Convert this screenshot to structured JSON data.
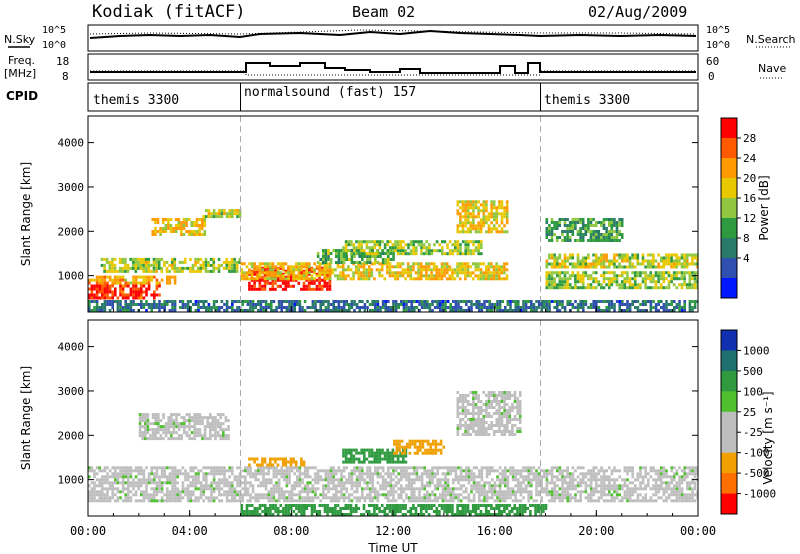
{
  "header": {
    "station": "Kodiak (fitACF)",
    "beam": "Beam 02",
    "date": "02/Aug/2009"
  },
  "strip_noise": {
    "left_label": "N.Sky",
    "left_ticks": [
      "10^5",
      "10^0"
    ],
    "right_label": "N.Search",
    "right_ticks": [
      "10^5",
      "10^0"
    ]
  },
  "strip_freq": {
    "left_label_1": "Freq.",
    "left_label_2": "[MHz]",
    "left_ticks": [
      "18",
      "8"
    ],
    "right_label": "Nave",
    "right_ticks": [
      "60",
      "0"
    ]
  },
  "cpid": {
    "label": "CPID",
    "segments": [
      {
        "name": "themis 3300",
        "start_hour": 0,
        "end_hour": 6
      },
      {
        "name": "normalsound (fast) 157",
        "start_hour": 6,
        "end_hour": 18
      },
      {
        "name": "themis 3300",
        "start_hour": 18,
        "end_hour": 24
      }
    ]
  },
  "power_panel": {
    "ylabel": "Slant Range [km]",
    "yticks": [
      "4000",
      "3000",
      "2000",
      "1000"
    ],
    "colorbar_label": "Power [dB]",
    "colorbar_ticks": [
      "28",
      "24",
      "20",
      "16",
      "12",
      "8",
      "4"
    ],
    "colors": [
      "#ff0000",
      "#ff5a00",
      "#ff9a00",
      "#e8c800",
      "#8fc840",
      "#2e9a40",
      "#2a7a6a",
      "#3050b0",
      "#0018ff"
    ]
  },
  "velocity_panel": {
    "ylabel": "Slant Range [km]",
    "yticks": [
      "4000",
      "3000",
      "2000",
      "1000"
    ],
    "colorbar_label": "Velocity [m s⁻¹]",
    "colorbar_ticks": [
      "1000",
      "500",
      "100",
      "25",
      "-25",
      "-100",
      "-500",
      "-1000"
    ],
    "colors": [
      "#1030b0",
      "#1f6f6f",
      "#2f9a3f",
      "#50c030",
      "#bebebe",
      "#bebebe",
      "#f0a000",
      "#ff7000",
      "#ff0000"
    ]
  },
  "xaxis": {
    "ticks": [
      "00:00",
      "04:00",
      "08:00",
      "12:00",
      "16:00",
      "20:00",
      "00:00"
    ],
    "label": "Time UT"
  },
  "chart_data": [
    {
      "type": "heatmap",
      "title": "Power",
      "xlabel": "Time UT",
      "ylabel": "Slant Range [km]",
      "xlim": [
        0,
        24
      ],
      "ylim": [
        180,
        4600
      ],
      "colorbar": {
        "label": "Power [dB]",
        "ticks": [
          4,
          8,
          12,
          16,
          20,
          24,
          28
        ]
      },
      "regions": [
        {
          "t": [
            0.0,
            2.8
          ],
          "r": [
            500,
            800
          ],
          "level": 27
        },
        {
          "t": [
            0.0,
            3.5
          ],
          "r": [
            800,
            1000
          ],
          "level": 20
        },
        {
          "t": [
            0.5,
            6.0
          ],
          "r": [
            1100,
            1400
          ],
          "level": 15
        },
        {
          "t": [
            2.5,
            4.6
          ],
          "r": [
            1900,
            2300
          ],
          "level": 18
        },
        {
          "t": [
            4.5,
            6.0
          ],
          "r": [
            2300,
            2500
          ],
          "level": 16
        },
        {
          "t": [
            6.3,
            9.5
          ],
          "r": [
            700,
            1200
          ],
          "level": 28
        },
        {
          "t": [
            6.0,
            16.5
          ],
          "r": [
            900,
            1300
          ],
          "level": 18
        },
        {
          "t": [
            9.0,
            12.0
          ],
          "r": [
            1300,
            1600
          ],
          "level": 12
        },
        {
          "t": [
            10.0,
            15.5
          ],
          "r": [
            1500,
            1800
          ],
          "level": 14
        },
        {
          "t": [
            14.5,
            16.5
          ],
          "r": [
            2000,
            2700
          ],
          "level": 18
        },
        {
          "t": [
            18.0,
            24.0
          ],
          "r": [
            1200,
            1500
          ],
          "level": 16
        },
        {
          "t": [
            18.0,
            24.0
          ],
          "r": [
            700,
            1100
          ],
          "level": 14
        },
        {
          "t": [
            18.0,
            21.0
          ],
          "r": [
            1800,
            2300
          ],
          "level": 10
        },
        {
          "t": [
            0.0,
            24.0
          ],
          "r": [
            200,
            450
          ],
          "level": 6
        }
      ]
    },
    {
      "type": "heatmap",
      "title": "Velocity",
      "xlabel": "Time UT",
      "ylabel": "Slant Range [km]",
      "xlim": [
        0,
        24
      ],
      "ylim": [
        180,
        4600
      ],
      "colorbar": {
        "label": "Velocity [m s⁻¹]",
        "ticks": [
          1000,
          500,
          100,
          25,
          -25,
          -100,
          -500,
          -1000
        ]
      },
      "regions": [
        {
          "t": [
            0.0,
            24.0
          ],
          "r": [
            500,
            1300
          ],
          "level": 0
        },
        {
          "t": [
            2.0,
            5.5
          ],
          "r": [
            1900,
            2500
          ],
          "level": 0
        },
        {
          "t": [
            6.3,
            8.5
          ],
          "r": [
            1300,
            1500
          ],
          "level": -200
        },
        {
          "t": [
            10.0,
            12.5
          ],
          "r": [
            1400,
            1700
          ],
          "level": 150
        },
        {
          "t": [
            12.0,
            14.0
          ],
          "r": [
            1600,
            1900
          ],
          "level": -150
        },
        {
          "t": [
            14.5,
            17.0
          ],
          "r": [
            2000,
            3000
          ],
          "level": 0
        },
        {
          "t": [
            6.0,
            18.0
          ],
          "r": [
            200,
            450
          ],
          "level": 120
        }
      ]
    }
  ]
}
